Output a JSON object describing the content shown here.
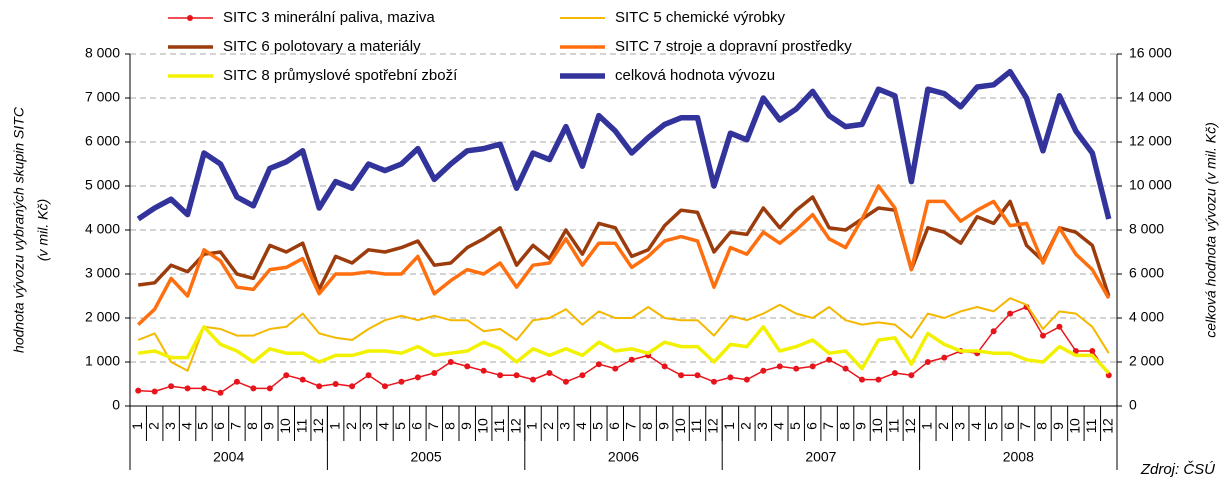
{
  "chart_data": {
    "type": "line",
    "categories": [
      "1",
      "2",
      "3",
      "4",
      "5",
      "6",
      "7",
      "8",
      "9",
      "10",
      "11",
      "12",
      "1",
      "2",
      "3",
      "4",
      "5",
      "6",
      "7",
      "8",
      "9",
      "10",
      "11",
      "12",
      "1",
      "2",
      "3",
      "4",
      "5",
      "6",
      "7",
      "8",
      "9",
      "10",
      "11",
      "12",
      "1",
      "2",
      "3",
      "4",
      "5",
      "6",
      "7",
      "8",
      "9",
      "10",
      "11",
      "12",
      "1",
      "2",
      "3",
      "4",
      "5",
      "6",
      "7",
      "8",
      "9",
      "10",
      "11",
      "12"
    ],
    "years": [
      "2004",
      "2005",
      "2006",
      "2007",
      "2008"
    ],
    "y_label": [
      "hodnota vývozu vybraných skupin SITC",
      "(v mil. Kč)"
    ],
    "y2_label": "celková hodnota vývozu (v mil. Kč)",
    "source": "Zdroj: ČSÚ",
    "ylim": [
      0,
      8000
    ],
    "yticks": [
      0,
      {
        "value": 1000,
        "label": "1 000"
      },
      {
        "value": 2000,
        "label": "2 000"
      },
      {
        "value": 3000,
        "label": "3 000"
      },
      {
        "value": 4000,
        "label": "4 000"
      },
      {
        "value": 5000,
        "label": "5 000"
      },
      {
        "value": 6000,
        "label": "6 000"
      },
      {
        "value": 7000,
        "label": "7 000"
      },
      {
        "value": 8000,
        "label": "8 000"
      }
    ],
    "y2lim": [
      0,
      16000
    ],
    "y2ticks": [
      0,
      {
        "value": 2000,
        "label": "2 000"
      },
      {
        "value": 4000,
        "label": "4 000"
      },
      {
        "value": 6000,
        "label": "6 000"
      },
      {
        "value": 8000,
        "label": "8 000"
      },
      {
        "value": 10000,
        "label": "10 000"
      },
      {
        "value": 12000,
        "label": "12 000"
      },
      {
        "value": 14000,
        "label": "14 000"
      },
      {
        "value": 16000,
        "label": "16 000"
      }
    ],
    "grid": true,
    "series": [
      {
        "name": "SITC 3 minerální paliva, maziva",
        "color": "#e8141c",
        "values": [
          350,
          330,
          450,
          400,
          400,
          300,
          550,
          400,
          400,
          700,
          600,
          450,
          500,
          450,
          700,
          450,
          550,
          650,
          750,
          1000,
          900,
          800,
          700,
          700,
          600,
          750,
          550,
          700,
          950,
          850,
          1050,
          1150,
          900,
          700,
          700,
          550,
          650,
          600,
          800,
          900,
          850,
          900,
          1050,
          850,
          600,
          600,
          750,
          700,
          1000,
          1100,
          1250,
          1200,
          1700,
          2100,
          2250,
          1600,
          1800,
          1250,
          1250,
          700
        ]
      },
      {
        "name": "SITC 5 chemické výrobky",
        "color": "#f5b800",
        "values": [
          1500,
          1650,
          1000,
          800,
          1800,
          1750,
          1600,
          1600,
          1750,
          1800,
          2100,
          1650,
          1550,
          1500,
          1750,
          1950,
          2050,
          1950,
          2050,
          1950,
          1950,
          1700,
          1750,
          1500,
          1950,
          2000,
          2200,
          1850,
          2150,
          2000,
          2000,
          2250,
          2000,
          1950,
          1950,
          1600,
          2050,
          1950,
          2100,
          2300,
          2100,
          2000,
          2250,
          1950,
          1850,
          1900,
          1850,
          1550,
          2100,
          2000,
          2150,
          2250,
          2150,
          2450,
          2300,
          1750,
          2150,
          2100,
          1800,
          1200
        ]
      },
      {
        "name": "SITC 6 polotovary a materiály",
        "color": "#9c3c0c",
        "values": [
          2750,
          2800,
          3200,
          3050,
          3450,
          3500,
          3000,
          2900,
          3650,
          3500,
          3700,
          2650,
          3400,
          3250,
          3550,
          3500,
          3600,
          3750,
          3200,
          3250,
          3600,
          3800,
          4050,
          3200,
          3650,
          3350,
          4000,
          3450,
          4150,
          4050,
          3400,
          3550,
          4100,
          4450,
          4400,
          3500,
          3950,
          3900,
          4500,
          4050,
          4450,
          4750,
          4050,
          4000,
          4250,
          4500,
          4450,
          3100,
          4050,
          3950,
          3700,
          4300,
          4150,
          4650,
          3650,
          3300,
          4050,
          3950,
          3650,
          2500
        ]
      },
      {
        "name": "SITC 7 stroje a dopravní prostředky",
        "color": "#ff6f0f",
        "values": [
          1850,
          2200,
          2900,
          2500,
          3550,
          3300,
          2700,
          2650,
          3100,
          3150,
          3350,
          2550,
          3000,
          3000,
          3050,
          3000,
          3000,
          3400,
          2550,
          2850,
          3100,
          3000,
          3250,
          2700,
          3200,
          3250,
          3800,
          3200,
          3700,
          3700,
          3150,
          3400,
          3750,
          3850,
          3750,
          2700,
          3600,
          3450,
          3950,
          3700,
          4000,
          4350,
          3800,
          3600,
          4250,
          5000,
          4500,
          3100,
          4650,
          4650,
          4200,
          4450,
          4650,
          4100,
          4150,
          3250,
          4050,
          3450,
          3100,
          2450
        ]
      },
      {
        "name": "SITC 8 průmyslové spotřební zboží",
        "color": "#f2f200",
        "values": [
          1200,
          1250,
          1100,
          1100,
          1800,
          1400,
          1250,
          1000,
          1300,
          1200,
          1200,
          1000,
          1150,
          1150,
          1250,
          1250,
          1200,
          1350,
          1150,
          1200,
          1250,
          1450,
          1300,
          1000,
          1300,
          1150,
          1300,
          1150,
          1450,
          1250,
          1300,
          1200,
          1450,
          1350,
          1350,
          1000,
          1400,
          1350,
          1800,
          1250,
          1350,
          1500,
          1200,
          1250,
          850,
          1500,
          1550,
          950,
          1650,
          1400,
          1250,
          1250,
          1200,
          1200,
          1050,
          1000,
          1350,
          1150,
          1150,
          750
        ]
      },
      {
        "name": "celková hodnota vývozu",
        "color": "#33339c",
        "axis": "y2",
        "values": [
          8500,
          9000,
          9400,
          8700,
          11500,
          11000,
          9500,
          9100,
          10800,
          11100,
          11600,
          9000,
          10200,
          9900,
          11000,
          10700,
          11000,
          11700,
          10300,
          11000,
          11600,
          11700,
          11900,
          9900,
          11500,
          11200,
          12700,
          10900,
          13200,
          12500,
          11500,
          12200,
          12800,
          13100,
          13100,
          10000,
          12400,
          12100,
          14000,
          13000,
          13500,
          14300,
          13200,
          12700,
          12800,
          14400,
          14100,
          10200,
          14400,
          14200,
          13600,
          14500,
          14600,
          15200,
          14000,
          11600,
          14100,
          12500,
          11500,
          8500
        ]
      }
    ]
  }
}
